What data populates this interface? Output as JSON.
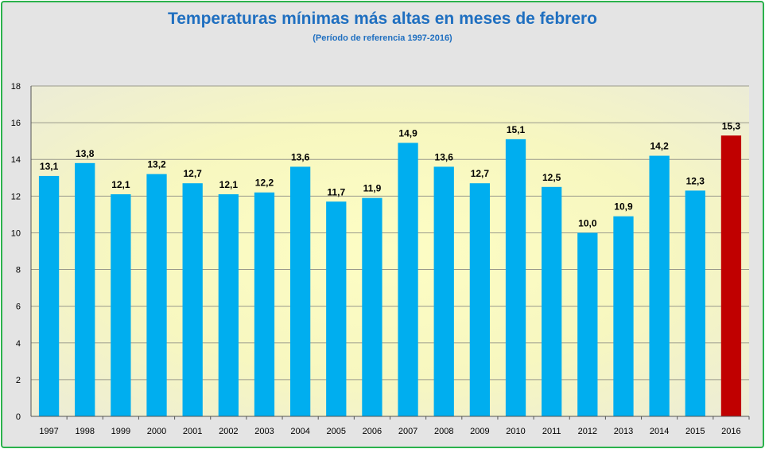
{
  "chart_data": {
    "type": "bar",
    "title": "Temperaturas mínimas más altas en meses de febrero",
    "subtitle": "(Período de referencia 1997-2016)",
    "categories": [
      "1997",
      "1998",
      "1999",
      "2000",
      "2001",
      "2002",
      "2003",
      "2004",
      "2005",
      "2006",
      "2007",
      "2008",
      "2009",
      "2010",
      "2011",
      "2012",
      "2013",
      "2014",
      "2015",
      "2016"
    ],
    "values": [
      13.1,
      13.8,
      12.1,
      13.2,
      12.7,
      12.1,
      12.2,
      13.6,
      11.7,
      11.9,
      14.9,
      13.6,
      12.7,
      15.1,
      12.5,
      10.0,
      10.9,
      14.2,
      12.3,
      15.3
    ],
    "value_labels": [
      "13,1",
      "13,8",
      "12,1",
      "13,2",
      "12,7",
      "12,1",
      "12,2",
      "13,6",
      "11,7",
      "11,9",
      "14,9",
      "13,6",
      "12,7",
      "15,1",
      "12,5",
      "10,0",
      "10,9",
      "14,2",
      "12,3",
      "15,3"
    ],
    "ylim": [
      0,
      18
    ],
    "yticks": [
      "0",
      "2",
      "4",
      "6",
      "8",
      "10",
      "12",
      "14",
      "16",
      "18"
    ],
    "grid": true,
    "colors": {
      "bar": "#00aeef",
      "highlight_bar": "#c00000",
      "highlight_label": "#c00000",
      "title": "#1f6fc0"
    },
    "highlight_index": 19
  }
}
